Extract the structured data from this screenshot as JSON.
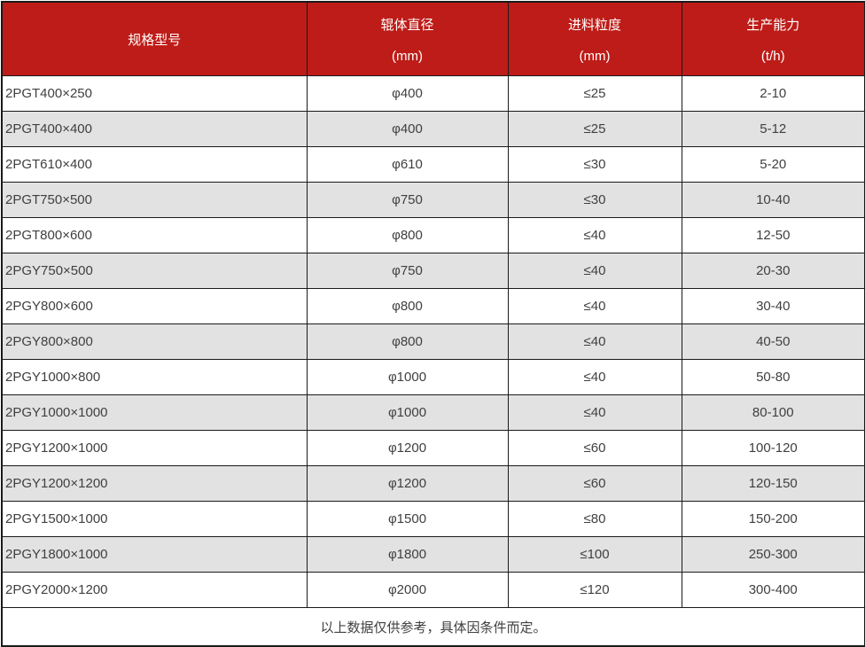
{
  "table": {
    "columns": [
      {
        "label": "规格型号",
        "unit": ""
      },
      {
        "label": "辊体直径",
        "unit": "(mm)"
      },
      {
        "label": "进料粒度",
        "unit": "(mm)"
      },
      {
        "label": "生产能力",
        "unit": "(t/h)"
      }
    ],
    "rows": [
      {
        "model": "2PGT400×250",
        "roller_diameter": "φ400",
        "feed_size": "≤25",
        "capacity": "2-10"
      },
      {
        "model": "2PGT400×400",
        "roller_diameter": "φ400",
        "feed_size": "≤25",
        "capacity": "5-12"
      },
      {
        "model": "2PGT610×400",
        "roller_diameter": "φ610",
        "feed_size": "≤30",
        "capacity": "5-20"
      },
      {
        "model": "2PGT750×500",
        "roller_diameter": "φ750",
        "feed_size": "≤30",
        "capacity": "10-40"
      },
      {
        "model": "2PGT800×600",
        "roller_diameter": "φ800",
        "feed_size": "≤40",
        "capacity": "12-50"
      },
      {
        "model": "2PGY750×500",
        "roller_diameter": "φ750",
        "feed_size": "≤40",
        "capacity": "20-30"
      },
      {
        "model": "2PGY800×600",
        "roller_diameter": "φ800",
        "feed_size": "≤40",
        "capacity": "30-40"
      },
      {
        "model": "2PGY800×800",
        "roller_diameter": "φ800",
        "feed_size": "≤40",
        "capacity": "40-50"
      },
      {
        "model": "2PGY1000×800",
        "roller_diameter": "φ1000",
        "feed_size": "≤40",
        "capacity": "50-80"
      },
      {
        "model": "2PGY1000×1000",
        "roller_diameter": "φ1000",
        "feed_size": "≤40",
        "capacity": "80-100"
      },
      {
        "model": "2PGY1200×1000",
        "roller_diameter": "φ1200",
        "feed_size": "≤60",
        "capacity": "100-120"
      },
      {
        "model": "2PGY1200×1200",
        "roller_diameter": "φ1200",
        "feed_size": "≤60",
        "capacity": "120-150"
      },
      {
        "model": "2PGY1500×1000",
        "roller_diameter": "φ1500",
        "feed_size": "≤80",
        "capacity": "150-200"
      },
      {
        "model": "2PGY1800×1000",
        "roller_diameter": "φ1800",
        "feed_size": "≤100",
        "capacity": "250-300"
      },
      {
        "model": "2PGY2000×1200",
        "roller_diameter": "φ2000",
        "feed_size": "≤120",
        "capacity": "300-400"
      }
    ],
    "footnote": "以上数据仅供参考，具体因条件而定。"
  },
  "colors": {
    "header_bg": "#be1c18",
    "header_text": "#ffffff",
    "row_alt_bg": "#e2e2e2",
    "border": "#1a1a1a",
    "body_text": "#404040"
  }
}
